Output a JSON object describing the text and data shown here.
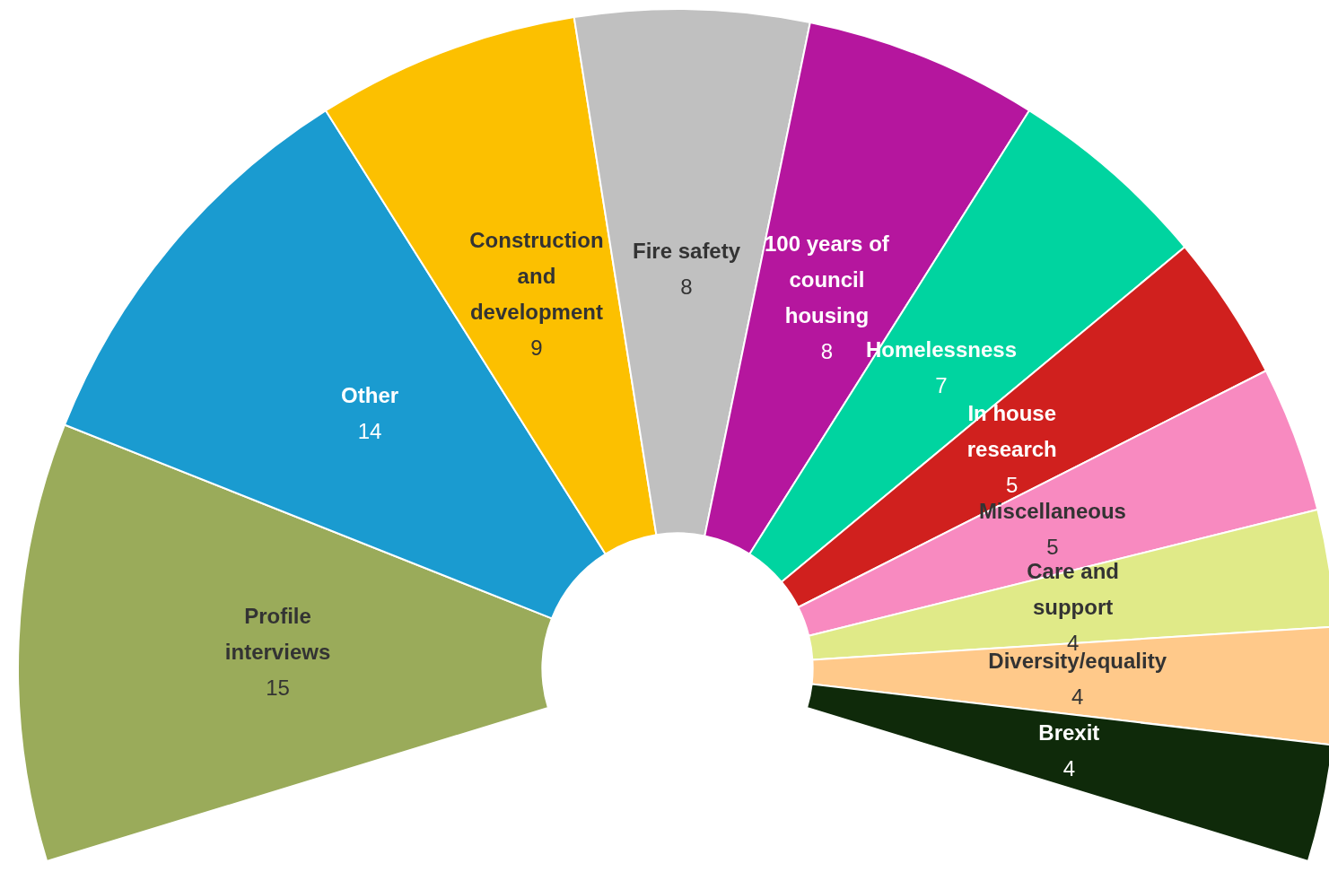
{
  "chart_data": {
    "type": "donut",
    "categories": [
      "Profile interviews",
      "Other",
      "Construction and development",
      "Fire safety",
      "100 years of council housing",
      "Homelessness",
      "In house research",
      "Miscellaneous",
      "Care and support",
      "Diversity/equality",
      "Brexit"
    ],
    "values": [
      15,
      14,
      9,
      8,
      8,
      7,
      5,
      5,
      4,
      4,
      4
    ],
    "colors": [
      "#9aab5a",
      "#1a9bd0",
      "#fcc000",
      "#c0c0c0",
      "#b5169e",
      "#00d4a0",
      "#d0201e",
      "#f88ac0",
      "#e0ea88",
      "#ffc98a",
      "#0f2a0a"
    ],
    "data_labels": true,
    "legend": false
  }
}
